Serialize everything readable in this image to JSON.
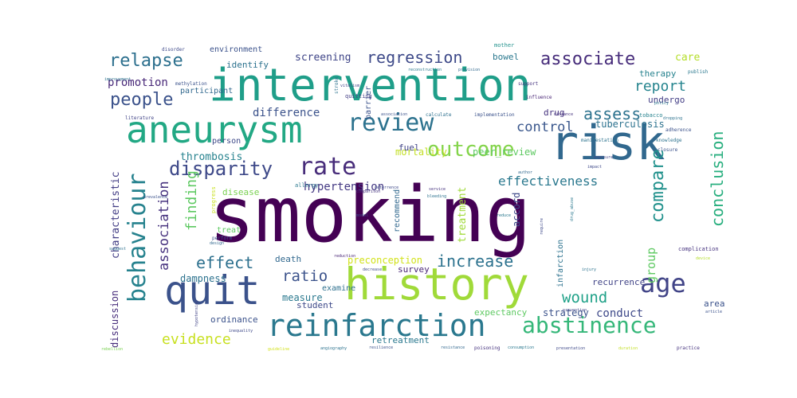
{
  "wordcloud": {
    "words": [
      {
        "text": "smoking",
        "color": "#440154"
      },
      {
        "text": "intervention",
        "color": "#1f9e89"
      },
      {
        "text": "risk",
        "color": "#31688e"
      },
      {
        "text": "history",
        "color": "#a0da39"
      },
      {
        "text": "aneurysm",
        "color": "#22a884"
      },
      {
        "text": "quit",
        "color": "#3b528b"
      },
      {
        "text": "reinfarction",
        "color": "#2a788e"
      },
      {
        "text": "behaviour",
        "color": "#26828e"
      },
      {
        "text": "review",
        "color": "#2c728e"
      },
      {
        "text": "rate",
        "color": "#472c7a"
      },
      {
        "text": "abstinence",
        "color": "#35b779"
      },
      {
        "text": "outcome",
        "color": "#84d44b"
      },
      {
        "text": "age",
        "color": "#414487"
      },
      {
        "text": "disparity",
        "color": "#3e4989"
      },
      {
        "text": "relapse",
        "color": "#2d708e"
      },
      {
        "text": "people",
        "color": "#3b528b"
      },
      {
        "text": "associate",
        "color": "#472d7b"
      },
      {
        "text": "regression",
        "color": "#3e4a89"
      },
      {
        "text": "compare",
        "color": "#21918c"
      },
      {
        "text": "conclusion",
        "color": "#29af7f"
      },
      {
        "text": "association",
        "color": "#46327e"
      },
      {
        "text": "finding",
        "color": "#5ec962"
      },
      {
        "text": "effect",
        "color": "#2d708e"
      },
      {
        "text": "increase",
        "color": "#2c728e"
      },
      {
        "text": "ratio",
        "color": "#3b528b"
      },
      {
        "text": "effectiveness",
        "color": "#2a788e"
      },
      {
        "text": "assess",
        "color": "#2c728e"
      },
      {
        "text": "report",
        "color": "#25848e"
      },
      {
        "text": "control",
        "color": "#39568c"
      },
      {
        "text": "evidence",
        "color": "#c8e020"
      },
      {
        "text": "wound",
        "color": "#1fa188"
      },
      {
        "text": "promotion",
        "color": "#482878"
      },
      {
        "text": "characteristic",
        "color": "#433e85"
      },
      {
        "text": "discussion",
        "color": "#472d7b"
      },
      {
        "text": "hypertension",
        "color": "#443983"
      },
      {
        "text": "difference",
        "color": "#3b528b"
      },
      {
        "text": "screening",
        "color": "#404688"
      },
      {
        "text": "thrombosis",
        "color": "#26828e"
      },
      {
        "text": "dampness",
        "color": "#2c728e"
      },
      {
        "text": "group",
        "color": "#5ec962"
      },
      {
        "text": "conduct",
        "color": "#3e4989"
      },
      {
        "text": "care",
        "color": "#b5de2b"
      },
      {
        "text": "treatment",
        "color": "#a0da39"
      },
      {
        "text": "mortality",
        "color": "#c2df23"
      },
      {
        "text": "peer_review",
        "color": "#5ec962"
      },
      {
        "text": "preconception",
        "color": "#d2e21b"
      },
      {
        "text": "survey",
        "color": "#482475"
      },
      {
        "text": "death",
        "color": "#31688e"
      },
      {
        "text": "measure",
        "color": "#2a788e"
      },
      {
        "text": "student",
        "color": "#3e4989"
      },
      {
        "text": "ordinance",
        "color": "#3b528b"
      },
      {
        "text": "retreatment",
        "color": "#2a788e"
      },
      {
        "text": "expectancy",
        "color": "#5ec962"
      },
      {
        "text": "strategy",
        "color": "#3b528b"
      },
      {
        "text": "recurrence",
        "color": "#414487"
      },
      {
        "text": "examine",
        "color": "#2d708e"
      },
      {
        "text": "drug",
        "color": "#46337f"
      },
      {
        "text": "tuberculosis",
        "color": "#2c728e"
      },
      {
        "text": "undergo",
        "color": "#433e85"
      },
      {
        "text": "therapy",
        "color": "#26828e"
      },
      {
        "text": "bowel",
        "color": "#2a788e"
      },
      {
        "text": "environment",
        "color": "#3b528b"
      },
      {
        "text": "identify",
        "color": "#2c728e"
      },
      {
        "text": "participant",
        "color": "#31688e"
      },
      {
        "text": "person",
        "color": "#3e4989"
      },
      {
        "text": "fuel",
        "color": "#414487"
      },
      {
        "text": "disease",
        "color": "#7ad151"
      },
      {
        "text": "treat",
        "color": "#5ec962"
      },
      {
        "text": "barrier",
        "color": "#3b528b"
      },
      {
        "text": "infarction",
        "color": "#2c728e"
      },
      {
        "text": "accord",
        "color": "#3e4989"
      },
      {
        "text": "recommend",
        "color": "#31688e"
      },
      {
        "text": "area",
        "color": "#3b528b"
      },
      {
        "text": "allergy",
        "color": "#2a788e"
      },
      {
        "text": "quitting",
        "color": "#433e85"
      },
      {
        "text": "mother",
        "color": "#21918c"
      },
      {
        "text": "complication",
        "color": "#46337f"
      },
      {
        "text": "adherence",
        "color": "#3b528b"
      },
      {
        "text": "tobacco",
        "color": "#26828e"
      },
      {
        "text": "disorder",
        "color": "#3e4989"
      },
      {
        "text": "improvement",
        "color": "#2c728e"
      },
      {
        "text": "methylation",
        "color": "#3b528b"
      },
      {
        "text": "knowledge",
        "color": "#2c728e"
      },
      {
        "text": "literature",
        "color": "#414487"
      },
      {
        "text": "publish",
        "color": "#2a788e"
      },
      {
        "text": "support",
        "color": "#46337f"
      },
      {
        "text": "influence",
        "color": "#482475"
      },
      {
        "text": "calculate",
        "color": "#2d708e"
      },
      {
        "text": "implementation",
        "color": "#3b528b"
      },
      {
        "text": "manifestation",
        "color": "#2c728e"
      },
      {
        "text": "exposure",
        "color": "#414487"
      },
      {
        "text": "policy",
        "color": "#2a788e"
      },
      {
        "text": "impact",
        "color": "#3e4989"
      },
      {
        "text": "author",
        "color": "#31688e"
      },
      {
        "text": "bleeding",
        "color": "#2c728e"
      },
      {
        "text": "closure",
        "color": "#3b528b"
      },
      {
        "text": "service",
        "color": "#46337f"
      },
      {
        "text": "model",
        "color": "#3e4989"
      },
      {
        "text": "reduce",
        "color": "#2a788e"
      },
      {
        "text": "design",
        "color": "#31688e"
      },
      {
        "text": "perform",
        "color": "#3b528b"
      },
      {
        "text": "suggest",
        "color": "#2d708e"
      },
      {
        "text": "reduction",
        "color": "#482475"
      },
      {
        "text": "decrease",
        "color": "#3e4989"
      },
      {
        "text": "injury",
        "color": "#2c728e"
      },
      {
        "text": "prevention",
        "color": "#414487"
      },
      {
        "text": "device",
        "color": "#b5de2b"
      },
      {
        "text": "article",
        "color": "#3b528b"
      },
      {
        "text": "practice",
        "color": "#46337f"
      },
      {
        "text": "duration",
        "color": "#c2df23"
      },
      {
        "text": "presentation",
        "color": "#3e4989"
      },
      {
        "text": "consumption",
        "color": "#2a788e"
      },
      {
        "text": "poisoning",
        "color": "#46337f"
      },
      {
        "text": "resistance",
        "color": "#31688e"
      },
      {
        "text": "resilience",
        "color": "#3b528b"
      },
      {
        "text": "angiography",
        "color": "#2c728e"
      },
      {
        "text": "guideline",
        "color": "#d2e21b"
      },
      {
        "text": "rebellion",
        "color": "#7ad151"
      },
      {
        "text": "inequality",
        "color": "#3e4989"
      },
      {
        "text": "hypotension",
        "color": "#414487"
      },
      {
        "text": "comparison",
        "color": "#46337f"
      },
      {
        "text": "reconstruction",
        "color": "#2a788e"
      },
      {
        "text": "provision",
        "color": "#31688e"
      },
      {
        "text": "association",
        "color": "#3b528b"
      },
      {
        "text": "deterrence",
        "color": "#3e4989"
      },
      {
        "text": "vitalism",
        "color": "#414487"
      },
      {
        "text": "stroke",
        "color": "#2c728e"
      },
      {
        "text": "progress",
        "color": "#c8e020"
      },
      {
        "text": "drug_abuse",
        "color": "#2a788e"
      },
      {
        "text": "prevalence",
        "color": "#3b528b"
      },
      {
        "text": "distance",
        "color": "#46337f"
      },
      {
        "text": "dropping",
        "color": "#2c728e"
      },
      {
        "text": "require",
        "color": "#3e4989"
      }
    ]
  }
}
